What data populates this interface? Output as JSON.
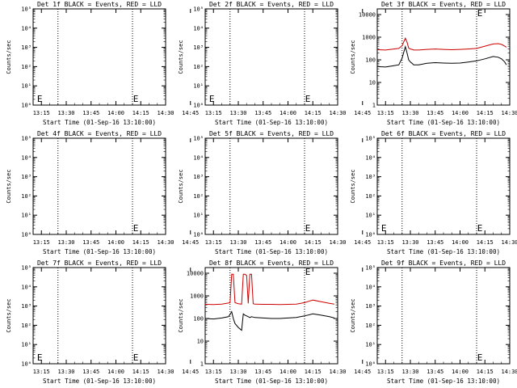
{
  "chart_data": [
    {
      "type": "line",
      "title": "Det 1f BLACK = Events, RED = LLD",
      "ylabel": "Counts/sec",
      "xlabel": "Start Time (01-Sep-16 13:10:00)",
      "y_scale": "log",
      "y_ticks": [
        "10⁰",
        "10¹",
        "10²",
        "10³",
        "10⁴",
        "10⁵"
      ],
      "x_ticks": [
        "13:15",
        "13:30",
        "13:45",
        "14:00",
        "14:15",
        "14:30",
        "14:45"
      ],
      "markers": [
        "E",
        "E"
      ],
      "series": []
    },
    {
      "type": "line",
      "title": "Det 2f BLACK = Events, RED = LLD",
      "ylabel": "Counts/sec",
      "xlabel": "Start Time (01-Sep-16 13:10:00)",
      "y_scale": "log",
      "y_ticks": [
        "10⁰",
        "10¹",
        "10²",
        "10³",
        "10⁴",
        "10⁵"
      ],
      "x_ticks": [
        "13:15",
        "13:30",
        "13:45",
        "14:00",
        "14:15",
        "14:30",
        "14:45"
      ],
      "markers": [
        "E",
        "E"
      ],
      "series": []
    },
    {
      "type": "line",
      "title": "Det 3f BLACK = Events, RED = LLD",
      "ylabel": "Counts/sec",
      "xlabel": "Start Time (01-Sep-16 13:10:00)",
      "y_scale": "log",
      "y_ticks": [
        "1",
        "10",
        "100",
        "1000",
        "10000"
      ],
      "x_ticks": [
        "13:15",
        "13:30",
        "13:45",
        "14:00",
        "14:15",
        "14:30",
        "14:45"
      ],
      "markers": [
        "E"
      ],
      "series": [
        {
          "color": "#cc0000",
          "x": [
            0,
            5,
            10,
            13,
            15,
            17,
            18,
            19,
            20,
            21,
            22,
            25,
            30,
            35,
            40,
            45,
            50,
            55,
            60,
            65,
            70,
            73,
            75,
            77,
            78
          ],
          "y": [
            280,
            270,
            300,
            320,
            420,
            900,
            600,
            330,
            300,
            290,
            270,
            270,
            290,
            300,
            290,
            280,
            290,
            300,
            320,
            400,
            500,
            520,
            480,
            400,
            360
          ]
        },
        {
          "color": "#000000",
          "x": [
            0,
            5,
            10,
            13,
            15,
            17,
            18,
            19,
            20,
            21,
            22,
            25,
            30,
            35,
            40,
            45,
            50,
            55,
            60,
            65,
            70,
            73,
            75,
            77,
            78
          ],
          "y": [
            50,
            48,
            55,
            60,
            120,
            380,
            200,
            100,
            80,
            70,
            60,
            60,
            70,
            75,
            72,
            70,
            72,
            80,
            90,
            110,
            140,
            130,
            110,
            80,
            60
          ]
        }
      ]
    },
    {
      "type": "line",
      "title": "Det 4f BLACK = Events, RED = LLD",
      "ylabel": "Counts/sec",
      "xlabel": "Start Time (01-Sep-16 13:10:00)",
      "y_scale": "log",
      "y_ticks": [
        "10⁰",
        "10¹",
        "10²",
        "10³",
        "10⁴",
        "10⁵"
      ],
      "x_ticks": [
        "13:15",
        "13:30",
        "13:45",
        "14:00",
        "14:15",
        "14:30",
        "14:45"
      ],
      "markers": [
        "E"
      ],
      "series": []
    },
    {
      "type": "line",
      "title": "Det 5f BLACK = Events, RED = LLD",
      "ylabel": "Counts/sec",
      "xlabel": "Start Time (01-Sep-16 13:10:00)",
      "y_scale": "log",
      "y_ticks": [
        "10⁰",
        "10¹",
        "10²",
        "10³",
        "10⁴",
        "10⁵"
      ],
      "x_ticks": [
        "13:15",
        "13:30",
        "13:45",
        "14:00",
        "14:15",
        "14:30",
        "14:45"
      ],
      "markers": [
        "E"
      ],
      "series": []
    },
    {
      "type": "line",
      "title": "Det 6f BLACK = Events, RED = LLD",
      "ylabel": "Counts/sec",
      "xlabel": "Start Time (01-Sep-16 13:10:00)",
      "y_scale": "log",
      "y_ticks": [
        "10⁰",
        "10¹",
        "10²",
        "10³",
        "10⁴",
        "10⁵"
      ],
      "x_ticks": [
        "13:15",
        "13:30",
        "13:45",
        "14:00",
        "14:15",
        "14:30",
        "14:45"
      ],
      "markers": [
        "E",
        "E"
      ],
      "series": []
    },
    {
      "type": "line",
      "title": "Det 7f BLACK = Events, RED = LLD",
      "ylabel": "Counts/sec",
      "xlabel": "Start Time (01-Sep-16 13:10:00)",
      "y_scale": "log",
      "y_ticks": [
        "10⁰",
        "10¹",
        "10²",
        "10³",
        "10⁴",
        "10⁵"
      ],
      "x_ticks": [
        "13:15",
        "13:30",
        "13:45",
        "14:00",
        "14:15",
        "14:30",
        "14:45"
      ],
      "markers": [
        "E",
        "E"
      ],
      "series": []
    },
    {
      "type": "line",
      "title": "Det 8f BLACK = Events, RED = LLD",
      "ylabel": "Counts/sec",
      "xlabel": "Start Time (01-Sep-16 13:10:00)",
      "y_scale": "log",
      "y_ticks": [
        "1",
        "10",
        "100",
        "1000",
        "10000"
      ],
      "x_ticks": [
        "13:15",
        "13:30",
        "13:45",
        "14:00",
        "14:15",
        "14:30",
        "14:45"
      ],
      "markers": [
        "E"
      ],
      "series": [
        {
          "color": "#cc0000",
          "x": [
            0,
            5,
            10,
            14,
            15,
            16,
            17,
            18,
            20,
            22,
            23,
            24,
            25,
            26,
            27,
            28,
            29,
            30,
            35,
            40,
            45,
            50,
            55,
            60,
            65,
            70,
            75,
            78
          ],
          "y": [
            420,
            410,
            430,
            480,
            500,
            9000,
            9000,
            500,
            450,
            430,
            9000,
            9000,
            8000,
            460,
            9000,
            9000,
            450,
            430,
            420,
            420,
            410,
            420,
            430,
            500,
            650,
            550,
            470,
            430
          ]
        },
        {
          "color": "#000000",
          "x": [
            0,
            5,
            10,
            14,
            15,
            16,
            17,
            18,
            20,
            22,
            23,
            24,
            25,
            26,
            27,
            28,
            29,
            30,
            35,
            40,
            45,
            50,
            55,
            60,
            65,
            70,
            75,
            78
          ],
          "y": [
            100,
            95,
            105,
            120,
            150,
            200,
            100,
            60,
            40,
            30,
            160,
            140,
            130,
            120,
            110,
            120,
            115,
            110,
            105,
            100,
            100,
            105,
            110,
            130,
            160,
            140,
            120,
            105
          ]
        }
      ]
    },
    {
      "type": "line",
      "title": "Det 9f BLACK = Events, RED = LLD",
      "ylabel": "Counts/sec",
      "xlabel": "Start Time (01-Sep-16 13:10:00)",
      "y_scale": "log",
      "y_ticks": [
        "10⁰",
        "10¹",
        "10²",
        "10³",
        "10⁴",
        "10⁵"
      ],
      "x_ticks": [
        "13:15",
        "13:30",
        "13:45",
        "14:00",
        "14:15",
        "14:30",
        "14:45"
      ],
      "markers": [
        "E"
      ],
      "series": []
    }
  ]
}
